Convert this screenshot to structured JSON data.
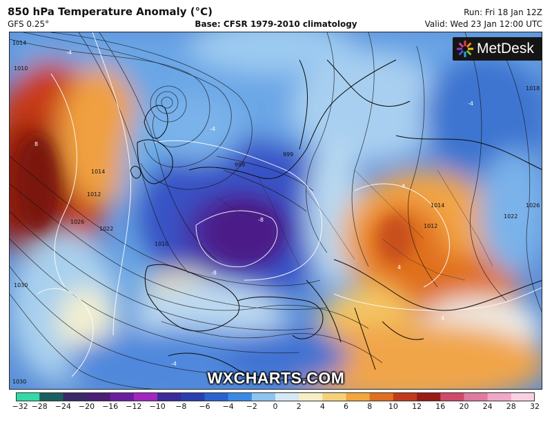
{
  "header": {
    "title": "850 hPa Temperature Anomaly (°C)",
    "model": "GFS 0.25°",
    "base": "Base: CFSR 1979-2010 climatology",
    "run": "Run: Fri 18 Jan 12Z",
    "valid": "Valid: Wed 23 Jan 12:00 UTC"
  },
  "logo": {
    "text": "MetDesk",
    "icon": "metdesk-logo-icon"
  },
  "watermark": "WXCHARTS.COM",
  "colorbar": {
    "ticks": [
      "−32",
      "−28",
      "−24",
      "−20",
      "−16",
      "−12",
      "−10",
      "−8",
      "−6",
      "−4",
      "−2",
      "0",
      "2",
      "4",
      "6",
      "8",
      "10",
      "12",
      "16",
      "20",
      "24",
      "28",
      "32"
    ],
    "colors": [
      "#34d9a6",
      "#1a6060",
      "#3a2a6a",
      "#4b1f75",
      "#6a1fa0",
      "#a226c0",
      "#3a2a9a",
      "#2a3fb0",
      "#2a62d0",
      "#3a8ae6",
      "#8ec4ef",
      "#d6e8f4",
      "#f6efc6",
      "#f5d27a",
      "#f2a63c",
      "#e0701f",
      "#c23a1a",
      "#9a1a16",
      "#d04a6a",
      "#e07aa0",
      "#f0a8c8",
      "#f8d0e2"
    ]
  },
  "isobar_labels": [
    {
      "text": "1014"
    },
    {
      "text": "1010"
    },
    {
      "text": "1014"
    },
    {
      "text": "1012"
    },
    {
      "text": "1026"
    },
    {
      "text": "1022"
    },
    {
      "text": "1010"
    },
    {
      "text": "1030"
    },
    {
      "text": "999"
    },
    {
      "text": "999"
    },
    {
      "text": "1014"
    },
    {
      "text": "1012"
    },
    {
      "text": "1026"
    },
    {
      "text": "1018"
    },
    {
      "text": "1022"
    },
    {
      "text": "1030"
    }
  ],
  "contour_labels": [
    {
      "text": "8"
    },
    {
      "text": "-4"
    },
    {
      "text": "-4"
    },
    {
      "text": "-8"
    },
    {
      "text": "-8"
    },
    {
      "text": "4"
    },
    {
      "text": "4"
    },
    {
      "text": "-4"
    },
    {
      "text": "4"
    },
    {
      "text": "-4"
    }
  ]
}
